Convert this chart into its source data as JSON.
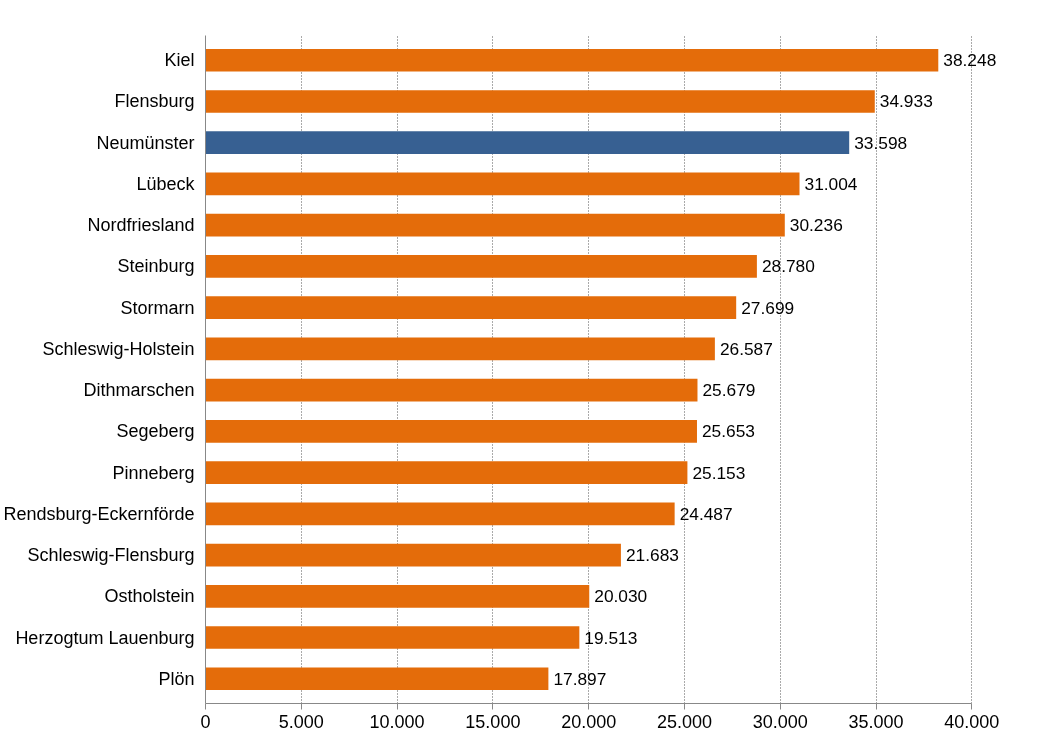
{
  "chart_data": {
    "type": "bar",
    "orientation": "horizontal",
    "categories": [
      "Kiel",
      "Flensburg",
      "Neumünster",
      "Lübeck",
      "Nordfriesland",
      "Steinburg",
      "Stormarn",
      "Schleswig-Holstein",
      "Dithmarschen",
      "Segeberg",
      "Pinneberg",
      "Rendsburg-Eckernförde",
      "Schleswig-Flensburg",
      "Ostholstein",
      "Herzogtum Lauenburg",
      "Plön"
    ],
    "values": [
      38248,
      34933,
      33598,
      31004,
      30236,
      28780,
      27699,
      26587,
      25679,
      25653,
      25153,
      24487,
      21683,
      20030,
      19513,
      17897
    ],
    "value_labels": [
      "38.248",
      "34.933",
      "33.598",
      "31.004",
      "30.236",
      "28.780",
      "27.699",
      "26.587",
      "25.679",
      "25.653",
      "25.153",
      "24.487",
      "21.683",
      "20.030",
      "19.513",
      "17.897"
    ],
    "colors": [
      "#e46c0a",
      "#e46c0a",
      "#376092",
      "#e46c0a",
      "#e46c0a",
      "#e46c0a",
      "#e46c0a",
      "#e46c0a",
      "#e46c0a",
      "#e46c0a",
      "#e46c0a",
      "#e46c0a",
      "#e46c0a",
      "#e46c0a",
      "#e46c0a",
      "#e46c0a"
    ],
    "xlim": [
      0,
      40000
    ],
    "xticks": [
      0,
      {
        "value": 5000,
        "label": "5.000"
      },
      {
        "value": 10000,
        "label": "10.000"
      },
      {
        "value": 15000,
        "label": "15.000"
      },
      {
        "value": 20000,
        "label": "20.000"
      },
      {
        "value": 25000,
        "label": "25.000"
      },
      {
        "value": 30000,
        "label": "30.000"
      },
      {
        "value": 35000,
        "label": "35.000"
      },
      {
        "value": 40000,
        "label": "40.000"
      }
    ],
    "grid": "x"
  }
}
